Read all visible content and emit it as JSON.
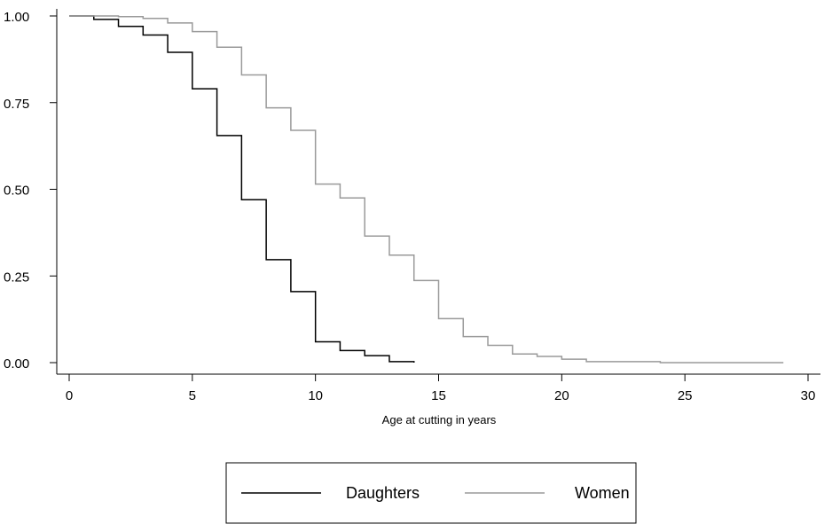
{
  "chart_data": {
    "type": "line",
    "title": "",
    "xlabel": "Age at cutting in years",
    "ylabel": "",
    "xlim": [
      0,
      30
    ],
    "ylim": [
      0,
      1
    ],
    "x_ticks": [
      "0",
      "5",
      "10",
      "15",
      "20",
      "25",
      "30"
    ],
    "y_ticks": [
      "0.00",
      "0.25",
      "0.50",
      "0.75",
      "1.00"
    ],
    "grid": false,
    "legend_position": "bottom",
    "series": [
      {
        "name": "Daughters",
        "color": "#000000",
        "step": true,
        "x": [
          0,
          1,
          2,
          3,
          4,
          5,
          6,
          7,
          8,
          9,
          10,
          11,
          12,
          13,
          14
        ],
        "y": [
          1.0,
          0.99,
          0.97,
          0.945,
          0.895,
          0.79,
          0.655,
          0.47,
          0.297,
          0.205,
          0.06,
          0.035,
          0.02,
          0.003,
          0.0
        ]
      },
      {
        "name": "Women",
        "color": "#9a9a9a",
        "step": true,
        "x": [
          0,
          1,
          2,
          3,
          4,
          5,
          6,
          7,
          8,
          9,
          10,
          11,
          12,
          13,
          14,
          15,
          16,
          17,
          18,
          19,
          20,
          21,
          24,
          29
        ],
        "y": [
          1.0,
          1.0,
          0.998,
          0.993,
          0.98,
          0.955,
          0.91,
          0.83,
          0.735,
          0.67,
          0.515,
          0.475,
          0.365,
          0.31,
          0.237,
          0.127,
          0.075,
          0.05,
          0.025,
          0.018,
          0.01,
          0.003,
          0.0,
          0.0
        ]
      }
    ]
  }
}
